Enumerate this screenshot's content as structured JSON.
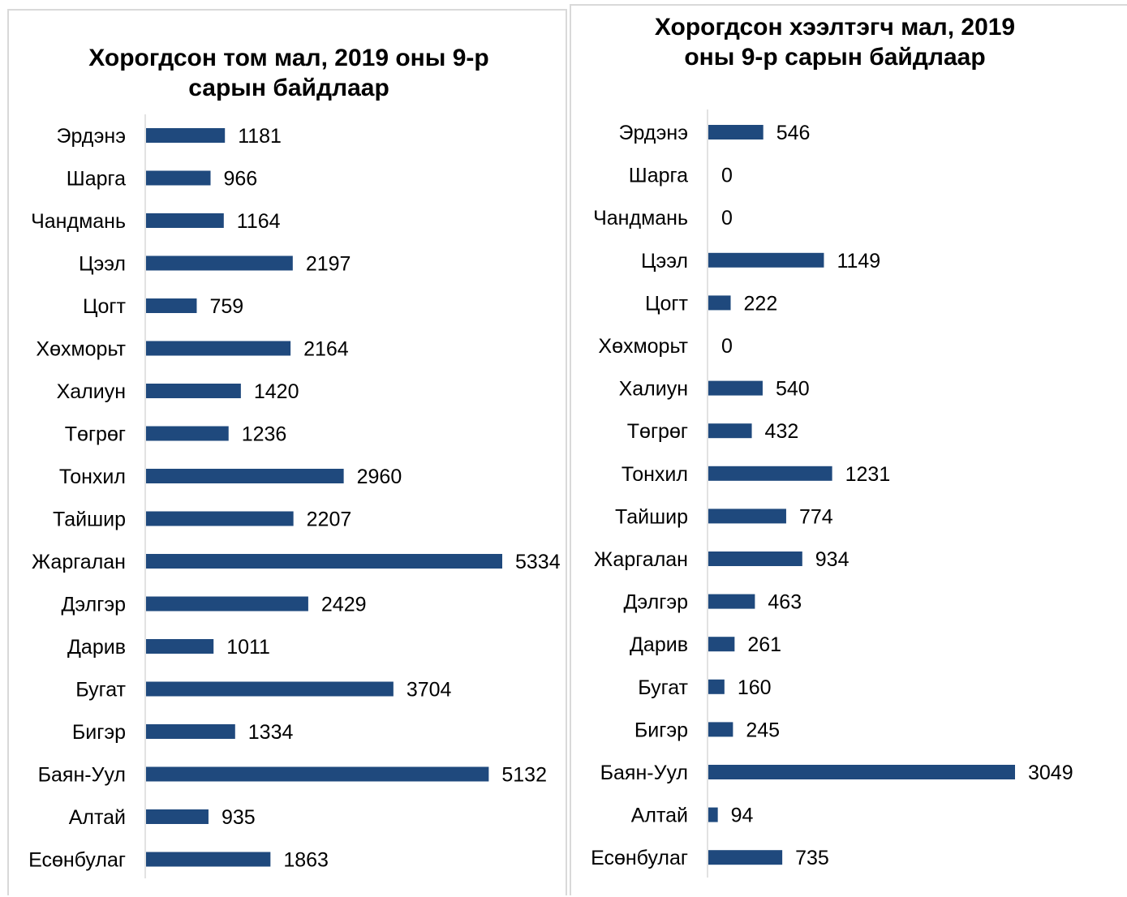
{
  "chart_data": [
    {
      "type": "bar",
      "orientation": "horizontal",
      "title": "Хорогдсон том мал, 2019 оны 9-р\nсарын байдлаар",
      "categories": [
        "Эрдэнэ",
        "Шарга",
        "Чандмань",
        "Цээл",
        "Цогт",
        "Хөхморьт",
        "Халиун",
        "Төгрөг",
        "Тонхил",
        "Тайшир",
        "Жаргалан",
        "Дэлгэр",
        "Дарив",
        "Бугат",
        "Бигэр",
        "Баян-Уул",
        "Алтай",
        "Есөнбулаг"
      ],
      "values": [
        1181,
        966,
        1164,
        2197,
        759,
        2164,
        1420,
        1236,
        2960,
        2207,
        5334,
        2429,
        1011,
        3704,
        1334,
        5132,
        935,
        1863
      ],
      "xlim": [
        0,
        5334
      ],
      "grid": false,
      "legend": "none",
      "bar_color": "#1f497d"
    },
    {
      "type": "bar",
      "orientation": "horizontal",
      "title": "Хорогдсон хээлтэгч мал, 2019\nоны 9-р сарын байдлаар",
      "categories": [
        "Эрдэнэ",
        "Шарга",
        "Чандмань",
        "Цээл",
        "Цогт",
        "Хөхморьт",
        "Халиун",
        "Төгрөг",
        "Тонхил",
        "Тайшир",
        "Жаргалан",
        "Дэлгэр",
        "Дарив",
        "Бугат",
        "Бигэр",
        "Баян-Уул",
        "Алтай",
        "Есөнбулаг"
      ],
      "values": [
        546,
        0,
        0,
        1149,
        222,
        0,
        540,
        432,
        1231,
        774,
        934,
        463,
        261,
        160,
        245,
        3049,
        94,
        735
      ],
      "xlim": [
        0,
        3049
      ],
      "grid": false,
      "legend": "none",
      "bar_color": "#1f497d"
    }
  ]
}
